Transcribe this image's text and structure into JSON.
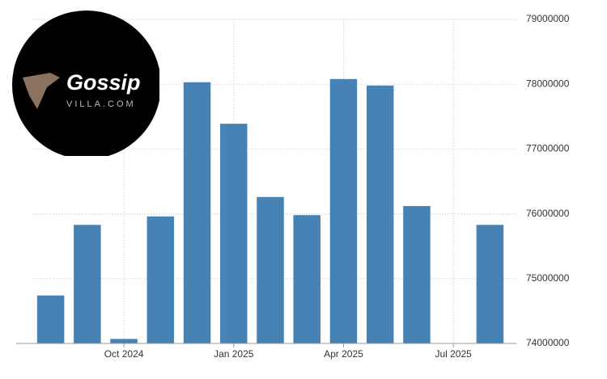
{
  "chart_data": {
    "type": "bar",
    "categories": [
      null,
      null,
      "Oct 2024",
      null,
      null,
      "Jan 2025",
      null,
      null,
      "Apr 2025",
      null,
      null,
      "Jul 2025",
      null
    ],
    "values": [
      74740000,
      75830000,
      74070000,
      75960000,
      78030000,
      77390000,
      76260000,
      75980000,
      78080000,
      77980000,
      76120000,
      null,
      75830000
    ],
    "color": "#4682b4",
    "ylim": [
      74000000,
      79000000
    ],
    "yticks": [
      74000000,
      75000000,
      76000000,
      77000000,
      78000000,
      79000000
    ],
    "grid": true
  },
  "watermark": {
    "text": "Gossip",
    "subtext": "VILLA.COM"
  }
}
